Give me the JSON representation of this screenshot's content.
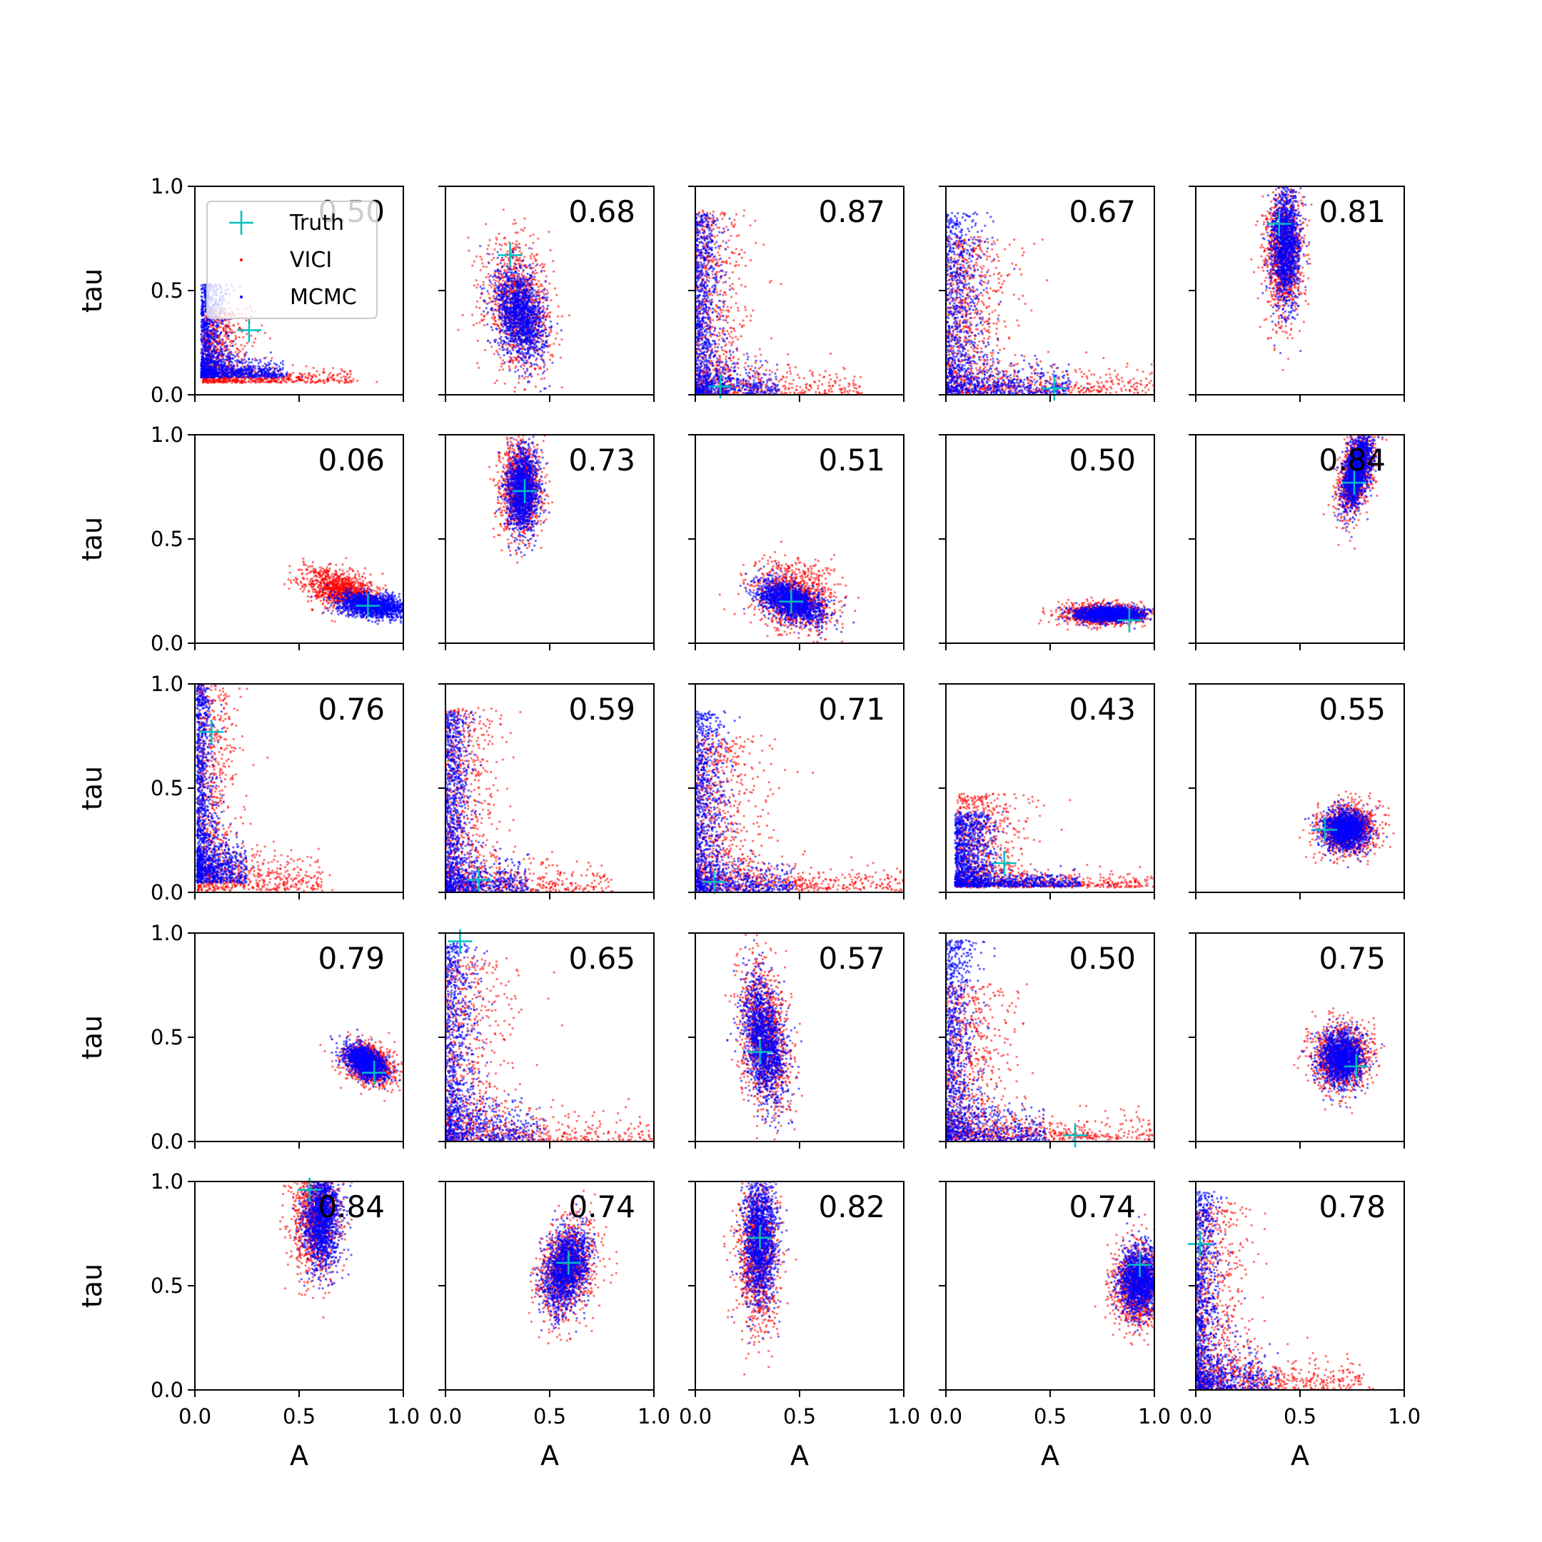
{
  "colors": {
    "truth": "#00bfbf",
    "vici": "#ff0000",
    "mcmc": "#0000ff",
    "axes": "#000000"
  },
  "chart_data": {
    "type": "scatter",
    "layout": "5x5 grid of scatter plots",
    "xlabel": "A",
    "ylabel": "tau",
    "xlim": [
      0.0,
      1.0
    ],
    "ylim": [
      0.0,
      1.0
    ],
    "xticks": [
      "0.0",
      "0.5",
      "1.0"
    ],
    "yticks": [
      "0.0",
      "0.5",
      "1.0"
    ],
    "legend": {
      "placement": "upper-left of first panel",
      "entries": [
        {
          "label": "Truth",
          "marker": "plus",
          "color": "#00bfbf"
        },
        {
          "label": "VICI",
          "marker": "dot",
          "color": "#ff0000"
        },
        {
          "label": "MCMC",
          "marker": "dot",
          "color": "#0000ff"
        }
      ]
    },
    "panels": [
      {
        "row": 0,
        "col": 0,
        "score": "0.50",
        "truth": [
          0.26,
          0.31
        ],
        "vici": {
          "shape": "lshape",
          "cx": 0.22,
          "cy": 0.25,
          "sx": 0.18,
          "sy": 0.12,
          "corr": -0.3
        },
        "mcmc": {
          "shape": "lshape",
          "cx": 0.15,
          "cy": 0.35,
          "sx": 0.1,
          "sy": 0.15,
          "corr": -0.3
        }
      },
      {
        "row": 0,
        "col": 1,
        "score": "0.68",
        "truth": [
          0.31,
          0.67
        ],
        "vici": {
          "shape": "gauss",
          "cx": 0.35,
          "cy": 0.42,
          "sx": 0.08,
          "sy": 0.15,
          "corr": -0.2
        },
        "mcmc": {
          "shape": "gauss",
          "cx": 0.36,
          "cy": 0.38,
          "sx": 0.06,
          "sy": 0.11,
          "corr": -0.3
        }
      },
      {
        "row": 0,
        "col": 2,
        "score": "0.87",
        "truth": [
          0.12,
          0.04
        ],
        "vici": {
          "shape": "lshape",
          "cx": 0.1,
          "cy": 0.1,
          "sx": 0.2,
          "sy": 0.3,
          "corr": 0
        },
        "mcmc": {
          "shape": "lshape",
          "cx": 0.04,
          "cy": 0.04,
          "sx": 0.1,
          "sy": 0.3,
          "corr": 0
        }
      },
      {
        "row": 0,
        "col": 3,
        "score": "0.67",
        "truth": [
          0.52,
          0.03
        ],
        "vici": {
          "shape": "lshape",
          "cx": 0.15,
          "cy": 0.15,
          "sx": 0.25,
          "sy": 0.25,
          "corr": 0
        },
        "mcmc": {
          "shape": "lshape",
          "cx": 0.07,
          "cy": 0.07,
          "sx": 0.15,
          "sy": 0.3,
          "corr": 0
        }
      },
      {
        "row": 0,
        "col": 4,
        "score": "0.81",
        "truth": [
          0.4,
          0.82
        ],
        "vici": {
          "shape": "gauss",
          "cx": 0.42,
          "cy": 0.68,
          "sx": 0.045,
          "sy": 0.16,
          "corr": 0
        },
        "mcmc": {
          "shape": "gauss",
          "cx": 0.43,
          "cy": 0.72,
          "sx": 0.035,
          "sy": 0.14,
          "corr": 0
        }
      },
      {
        "row": 1,
        "col": 0,
        "score": "0.06",
        "truth": [
          0.83,
          0.18
        ],
        "vici": {
          "shape": "gauss",
          "cx": 0.7,
          "cy": 0.26,
          "sx": 0.09,
          "sy": 0.05,
          "corr": -0.4
        },
        "mcmc": {
          "shape": "gauss",
          "cx": 0.85,
          "cy": 0.18,
          "sx": 0.08,
          "sy": 0.03,
          "corr": -0.3
        }
      },
      {
        "row": 1,
        "col": 1,
        "score": "0.73",
        "truth": [
          0.38,
          0.73
        ],
        "vici": {
          "shape": "gauss",
          "cx": 0.36,
          "cy": 0.75,
          "sx": 0.05,
          "sy": 0.12,
          "corr": 0
        },
        "mcmc": {
          "shape": "gauss",
          "cx": 0.37,
          "cy": 0.73,
          "sx": 0.04,
          "sy": 0.1,
          "corr": 0
        }
      },
      {
        "row": 1,
        "col": 2,
        "score": "0.51",
        "truth": [
          0.46,
          0.2
        ],
        "vici": {
          "shape": "gauss",
          "cx": 0.47,
          "cy": 0.22,
          "sx": 0.1,
          "sy": 0.08,
          "corr": -0.2
        },
        "mcmc": {
          "shape": "gauss",
          "cx": 0.46,
          "cy": 0.2,
          "sx": 0.08,
          "sy": 0.05,
          "corr": -0.5
        }
      },
      {
        "row": 1,
        "col": 3,
        "score": "0.50",
        "truth": [
          0.88,
          0.11
        ],
        "vici": {
          "shape": "gauss",
          "cx": 0.76,
          "cy": 0.14,
          "sx": 0.1,
          "sy": 0.025,
          "corr": 0
        },
        "mcmc": {
          "shape": "gauss",
          "cx": 0.78,
          "cy": 0.14,
          "sx": 0.08,
          "sy": 0.018,
          "corr": 0
        }
      },
      {
        "row": 1,
        "col": 4,
        "score": "0.84",
        "truth": [
          0.76,
          0.77
        ],
        "vici": {
          "shape": "gauss",
          "cx": 0.77,
          "cy": 0.82,
          "sx": 0.045,
          "sy": 0.1,
          "corr": 0.5
        },
        "mcmc": {
          "shape": "gauss",
          "cx": 0.77,
          "cy": 0.83,
          "sx": 0.035,
          "sy": 0.09,
          "corr": 0.5
        }
      },
      {
        "row": 2,
        "col": 0,
        "score": "0.76",
        "truth": [
          0.08,
          0.77
        ],
        "vici": {
          "shape": "lshape",
          "cx": 0.12,
          "cy": 0.2,
          "sx": 0.15,
          "sy": 0.35,
          "corr": 0
        },
        "mcmc": {
          "shape": "lshape",
          "cx": 0.06,
          "cy": 0.35,
          "sx": 0.06,
          "sy": 0.4,
          "corr": 0
        }
      },
      {
        "row": 2,
        "col": 1,
        "score": "0.59",
        "truth": [
          0.16,
          0.06
        ],
        "vici": {
          "shape": "lshape",
          "cx": 0.1,
          "cy": 0.1,
          "sx": 0.2,
          "sy": 0.3,
          "corr": 0
        },
        "mcmc": {
          "shape": "lshape",
          "cx": 0.05,
          "cy": 0.05,
          "sx": 0.1,
          "sy": 0.3,
          "corr": 0
        }
      },
      {
        "row": 2,
        "col": 2,
        "score": "0.71",
        "truth": [
          0.09,
          0.05
        ],
        "vici": {
          "shape": "lshape",
          "cx": 0.15,
          "cy": 0.15,
          "sx": 0.25,
          "sy": 0.25,
          "corr": 0
        },
        "mcmc": {
          "shape": "lshape",
          "cx": 0.05,
          "cy": 0.05,
          "sx": 0.12,
          "sy": 0.3,
          "corr": 0
        }
      },
      {
        "row": 2,
        "col": 3,
        "score": "0.43",
        "truth": [
          0.28,
          0.14
        ],
        "vici": {
          "shape": "lshape",
          "cx": 0.3,
          "cy": 0.15,
          "sx": 0.25,
          "sy": 0.15,
          "corr": -0.3
        },
        "mcmc": {
          "shape": "lshape",
          "cx": 0.22,
          "cy": 0.15,
          "sx": 0.15,
          "sy": 0.12,
          "corr": -0.3
        }
      },
      {
        "row": 2,
        "col": 4,
        "score": "0.55",
        "truth": [
          0.62,
          0.3
        ],
        "vici": {
          "shape": "gauss",
          "cx": 0.73,
          "cy": 0.3,
          "sx": 0.07,
          "sy": 0.06,
          "corr": 0
        },
        "mcmc": {
          "shape": "gauss",
          "cx": 0.72,
          "cy": 0.3,
          "sx": 0.055,
          "sy": 0.05,
          "corr": 0
        }
      },
      {
        "row": 3,
        "col": 0,
        "score": "0.79",
        "truth": [
          0.86,
          0.33
        ],
        "vici": {
          "shape": "gauss",
          "cx": 0.84,
          "cy": 0.37,
          "sx": 0.06,
          "sy": 0.05,
          "corr": -0.3
        },
        "mcmc": {
          "shape": "gauss",
          "cx": 0.82,
          "cy": 0.38,
          "sx": 0.05,
          "sy": 0.04,
          "corr": -0.5
        }
      },
      {
        "row": 3,
        "col": 1,
        "score": "0.65",
        "truth": [
          0.07,
          0.96
        ],
        "vici": {
          "shape": "lshape",
          "cx": 0.1,
          "cy": 0.1,
          "sx": 0.25,
          "sy": 0.3,
          "corr": 0
        },
        "mcmc": {
          "shape": "lshape",
          "cx": 0.04,
          "cy": 0.05,
          "sx": 0.12,
          "sy": 0.4,
          "corr": 0
        }
      },
      {
        "row": 3,
        "col": 2,
        "score": "0.57",
        "truth": [
          0.31,
          0.43
        ],
        "vici": {
          "shape": "gauss",
          "cx": 0.33,
          "cy": 0.5,
          "sx": 0.06,
          "sy": 0.18,
          "corr": -0.3
        },
        "mcmc": {
          "shape": "gauss",
          "cx": 0.33,
          "cy": 0.48,
          "sx": 0.05,
          "sy": 0.15,
          "corr": -0.4
        }
      },
      {
        "row": 3,
        "col": 3,
        "score": "0.50",
        "truth": [
          0.62,
          0.03
        ],
        "vici": {
          "shape": "lshape",
          "cx": 0.15,
          "cy": 0.15,
          "sx": 0.25,
          "sy": 0.25,
          "corr": 0
        },
        "mcmc": {
          "shape": "lshape",
          "cx": 0.06,
          "cy": 0.06,
          "sx": 0.12,
          "sy": 0.35,
          "corr": 0
        }
      },
      {
        "row": 3,
        "col": 4,
        "score": "0.75",
        "truth": [
          0.77,
          0.36
        ],
        "vici": {
          "shape": "gauss",
          "cx": 0.7,
          "cy": 0.4,
          "sx": 0.07,
          "sy": 0.08,
          "corr": 0
        },
        "mcmc": {
          "shape": "gauss",
          "cx": 0.7,
          "cy": 0.4,
          "sx": 0.055,
          "sy": 0.065,
          "corr": 0
        }
      },
      {
        "row": 4,
        "col": 0,
        "score": "0.84",
        "truth": [
          0.55,
          0.96
        ],
        "vici": {
          "shape": "gauss",
          "cx": 0.58,
          "cy": 0.83,
          "sx": 0.06,
          "sy": 0.14,
          "corr": 0
        },
        "mcmc": {
          "shape": "gauss",
          "cx": 0.61,
          "cy": 0.82,
          "sx": 0.045,
          "sy": 0.12,
          "corr": 0
        }
      },
      {
        "row": 4,
        "col": 1,
        "score": "0.74",
        "truth": [
          0.59,
          0.61
        ],
        "vici": {
          "shape": "gauss",
          "cx": 0.58,
          "cy": 0.58,
          "sx": 0.07,
          "sy": 0.12,
          "corr": 0.3
        },
        "mcmc": {
          "shape": "gauss",
          "cx": 0.58,
          "cy": 0.58,
          "sx": 0.055,
          "sy": 0.1,
          "corr": 0.3
        }
      },
      {
        "row": 4,
        "col": 2,
        "score": "0.82",
        "truth": [
          0.31,
          0.73
        ],
        "vici": {
          "shape": "gauss",
          "cx": 0.3,
          "cy": 0.65,
          "sx": 0.05,
          "sy": 0.18,
          "corr": 0
        },
        "mcmc": {
          "shape": "gauss",
          "cx": 0.31,
          "cy": 0.72,
          "sx": 0.04,
          "sy": 0.15,
          "corr": 0
        }
      },
      {
        "row": 4,
        "col": 3,
        "score": "0.74",
        "truth": [
          0.93,
          0.6
        ],
        "vici": {
          "shape": "gauss",
          "cx": 0.92,
          "cy": 0.5,
          "sx": 0.06,
          "sy": 0.1,
          "corr": 0
        },
        "mcmc": {
          "shape": "gauss",
          "cx": 0.93,
          "cy": 0.52,
          "sx": 0.05,
          "sy": 0.08,
          "corr": 0
        }
      },
      {
        "row": 4,
        "col": 4,
        "score": "0.78",
        "truth": [
          0.02,
          0.7
        ],
        "vici": {
          "shape": "lshape",
          "cx": 0.12,
          "cy": 0.15,
          "sx": 0.2,
          "sy": 0.3,
          "corr": 0
        },
        "mcmc": {
          "shape": "lshape",
          "cx": 0.04,
          "cy": 0.04,
          "sx": 0.1,
          "sy": 0.4,
          "corr": 0
        }
      }
    ]
  }
}
